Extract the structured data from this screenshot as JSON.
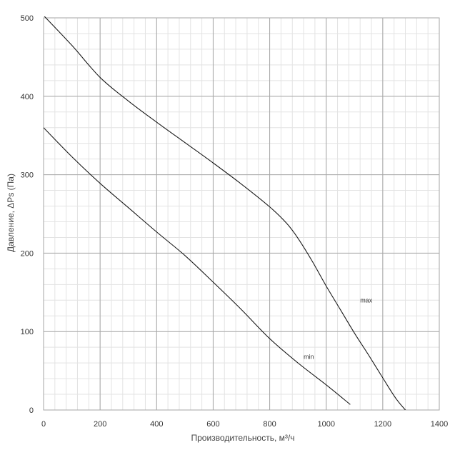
{
  "chart_data": {
    "type": "line",
    "title": "",
    "xlabel": "Производительность, м³/ч",
    "ylabel": "Давление, ΔPs (Па)",
    "xlim": [
      0,
      1400
    ],
    "ylim": [
      0,
      500
    ],
    "x_ticks": [
      "0",
      "200",
      "400",
      "600",
      "800",
      "1000",
      "1200",
      "1400"
    ],
    "y_ticks": [
      "0",
      "100",
      "200",
      "300",
      "400",
      "500"
    ],
    "grid": true,
    "legend": "none",
    "series": [
      {
        "name": "max",
        "color": "#1a1a1a",
        "label_at": [
          1120,
          140
        ],
        "x": [
          0,
          100,
          200,
          300,
          400,
          500,
          600,
          700,
          800,
          860,
          900,
          950,
          1000,
          1050,
          1100,
          1150,
          1200,
          1250,
          1300,
          1370
        ],
        "y": [
          503,
          465,
          424,
          394,
          367,
          341,
          315,
          288,
          259,
          238,
          219,
          190,
          158,
          128,
          98,
          70,
          41,
          13,
          -8,
          -37
        ]
      },
      {
        "name": "min",
        "color": "#1a1a1a",
        "label_at": [
          920,
          68
        ],
        "x": [
          0,
          100,
          200,
          300,
          400,
          500,
          600,
          700,
          800,
          900,
          1000,
          1085
        ],
        "y": [
          360,
          323,
          289,
          258,
          227,
          197,
          163,
          128,
          91,
          60,
          32,
          7
        ]
      }
    ]
  }
}
